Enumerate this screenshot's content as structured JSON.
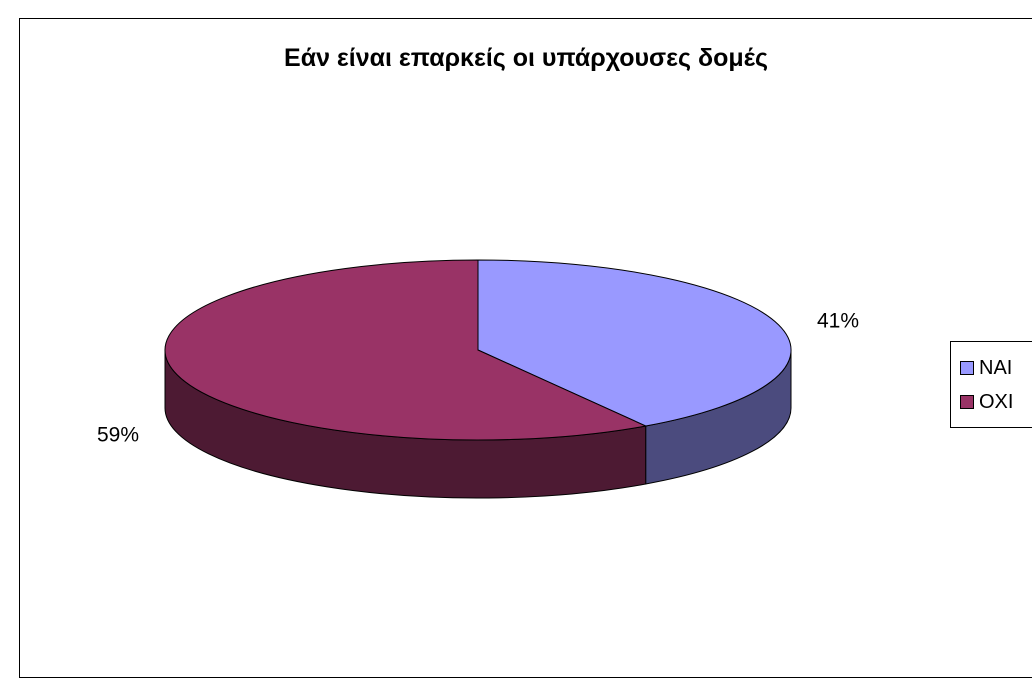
{
  "chart_data": {
    "type": "pie",
    "title": "Εάν είναι επαρκείς οι υπάρχουσες δομές",
    "categories": [
      "ΝΑΙ",
      "ΟΧΙ"
    ],
    "values": [
      41,
      59
    ],
    "data_labels": [
      "41%",
      "59%"
    ],
    "colors": [
      "#9999ff",
      "#993366"
    ],
    "side_colors": [
      "#4b4b7e",
      "#4d1a33"
    ],
    "style": "3d",
    "legend_placement": "right"
  }
}
